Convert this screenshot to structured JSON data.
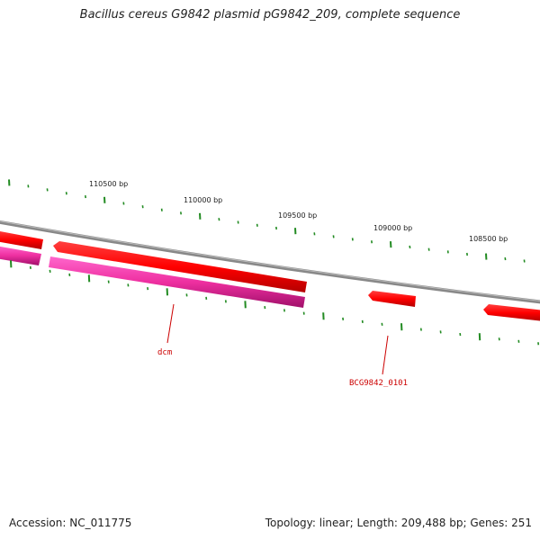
{
  "title": "Bacillus cereus G9842 plasmid pG9842_209, complete sequence",
  "footer": {
    "accession": "Accession: NC_011775",
    "summary": "Topology: linear; Length: 209,488 bp; Genes: 251"
  },
  "ruler_labels": [
    "110500 bp",
    "110000 bp",
    "109500 bp",
    "109000 bp",
    "108500 bp"
  ],
  "gene_labels": [
    "dcm",
    "BCG9842_0101"
  ],
  "colors": {
    "backbone": "#888888",
    "gene": "#ff0000",
    "cds": "#ee2fa0",
    "tick": "#228b22",
    "label": "#cc0000"
  }
}
